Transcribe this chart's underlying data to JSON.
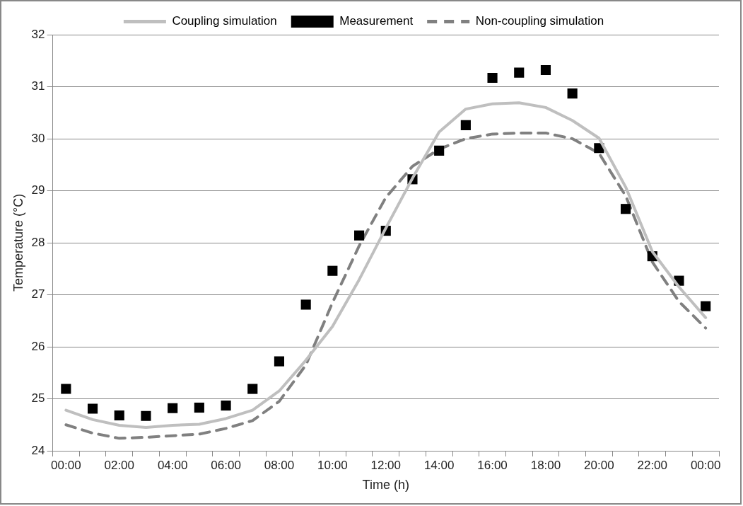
{
  "chart_data": {
    "type": "line",
    "xlabel": "Time (h)",
    "ylabel": "Temperature (°C)",
    "categories": [
      "00:00",
      null,
      "02:00",
      null,
      "04:00",
      null,
      "06:00",
      null,
      "08:00",
      null,
      "10:00",
      null,
      "12:00",
      null,
      "14:00",
      null,
      "16:00",
      null,
      "18:00",
      null,
      "20:00",
      null,
      "22:00",
      null,
      "00:00"
    ],
    "ylim": [
      24,
      32
    ],
    "yticks": [
      24,
      25,
      26,
      27,
      28,
      29,
      30,
      31,
      32
    ],
    "grid": "y",
    "legend": "top",
    "series": [
      {
        "name": "Coupling simulation",
        "type": "line",
        "line_style": "solid",
        "marker": "none",
        "color": "#bfbfbf",
        "values": [
          24.78,
          24.6,
          24.49,
          24.45,
          24.49,
          24.51,
          24.62,
          24.78,
          25.15,
          25.74,
          26.39,
          27.29,
          28.28,
          29.24,
          30.13,
          30.57,
          30.67,
          30.69,
          30.6,
          30.35,
          30.01,
          29.07,
          27.83,
          27.15,
          26.56
        ]
      },
      {
        "name": "Measurement",
        "type": "scatter",
        "marker": "square",
        "color": "#000000",
        "values": [
          25.19,
          24.81,
          24.68,
          24.67,
          24.82,
          24.83,
          24.87,
          25.19,
          25.72,
          26.81,
          27.46,
          28.14,
          28.23,
          29.22,
          29.77,
          30.26,
          31.17,
          31.27,
          31.32,
          30.87,
          29.82,
          28.65,
          27.74,
          27.27,
          26.78
        ]
      },
      {
        "name": "Non-coupling simulation",
        "type": "line",
        "line_style": "dashed",
        "marker": "none",
        "color": "#808080",
        "values": [
          24.5,
          24.34,
          24.24,
          24.26,
          24.29,
          24.32,
          24.43,
          24.58,
          24.95,
          25.65,
          26.85,
          27.94,
          28.87,
          29.47,
          29.8,
          30.0,
          30.09,
          30.11,
          30.11,
          30.0,
          29.72,
          28.9,
          27.63,
          26.87,
          26.36
        ]
      }
    ]
  }
}
